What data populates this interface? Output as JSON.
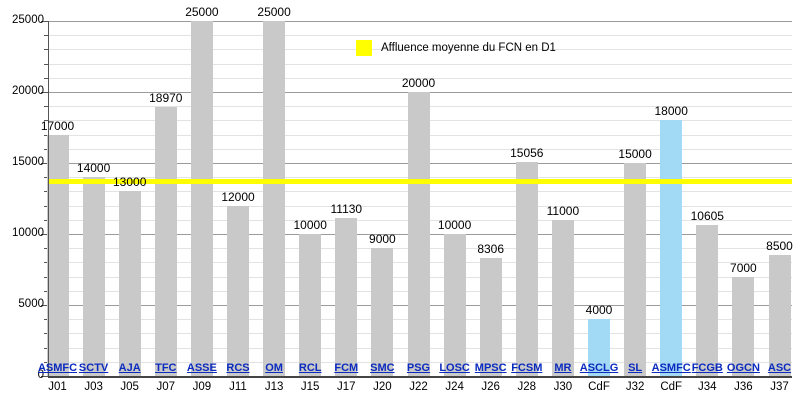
{
  "legend": {
    "label": "Affluence moyenne du FCN en D1",
    "swatch_color": "#ffff00"
  },
  "colors": {
    "background": "#ffffff",
    "bar_default": "#c9c9c9",
    "bar_cup": "#a2d9f5",
    "average_line": "#ffff00",
    "link": "#0b2bbf",
    "grid_minor": "#e3e3e3",
    "grid_major": "#9b9b9b",
    "axis": "#444444",
    "text": "#000000"
  },
  "chart_data": {
    "type": "bar",
    "title": "",
    "xlabel": "",
    "ylabel": "",
    "ylim": [
      0,
      25000
    ],
    "y_major_step": 5000,
    "y_minor_step": 1000,
    "grid": "on",
    "legend_position": "top-center",
    "legend_entries": [
      "Affluence moyenne du FCN en D1"
    ],
    "average_line_value": 13714,
    "y_tick_labels": [
      "0",
      "5000",
      "10000",
      "15000",
      "20000",
      "25000"
    ],
    "bars": [
      {
        "journee": "J01",
        "club": "ASMFC",
        "value": 17000,
        "cup": false
      },
      {
        "journee": "J03",
        "club": "SCTV",
        "value": 14000,
        "cup": false
      },
      {
        "journee": "J05",
        "club": "AJA",
        "value": 13000,
        "cup": false
      },
      {
        "journee": "J07",
        "club": "TFC",
        "value": 18970,
        "cup": false
      },
      {
        "journee": "J09",
        "club": "ASSE",
        "value": 25000,
        "cup": false
      },
      {
        "journee": "J11",
        "club": "RCS",
        "value": 12000,
        "cup": false
      },
      {
        "journee": "J13",
        "club": "OM",
        "value": 25000,
        "cup": false
      },
      {
        "journee": "J15",
        "club": "RCL",
        "value": 10000,
        "cup": false
      },
      {
        "journee": "J17",
        "club": "FCM",
        "value": 11130,
        "cup": false
      },
      {
        "journee": "J20",
        "club": "SMC",
        "value": 9000,
        "cup": false
      },
      {
        "journee": "J22",
        "club": "PSG",
        "value": 20000,
        "cup": false
      },
      {
        "journee": "J24",
        "club": "LOSC",
        "value": 10000,
        "cup": false
      },
      {
        "journee": "J26",
        "club": "MPSC",
        "value": 8306,
        "cup": false
      },
      {
        "journee": "J28",
        "club": "FCSM",
        "value": 15056,
        "cup": false
      },
      {
        "journee": "J30",
        "club": "MR",
        "value": 11000,
        "cup": false
      },
      {
        "journee": "CdF",
        "club": "ASCLG",
        "value": 4000,
        "cup": true
      },
      {
        "journee": "J32",
        "club": "SL",
        "value": 15000,
        "cup": false
      },
      {
        "journee": "CdF",
        "club": "ASMFC",
        "value": 18000,
        "cup": true
      },
      {
        "journee": "J34",
        "club": "FCGB",
        "value": 10605,
        "cup": false
      },
      {
        "journee": "J36",
        "club": "OGCN",
        "value": 7000,
        "cup": false
      },
      {
        "journee": "J37",
        "club": "ASC",
        "value": 8500,
        "cup": false
      }
    ]
  }
}
